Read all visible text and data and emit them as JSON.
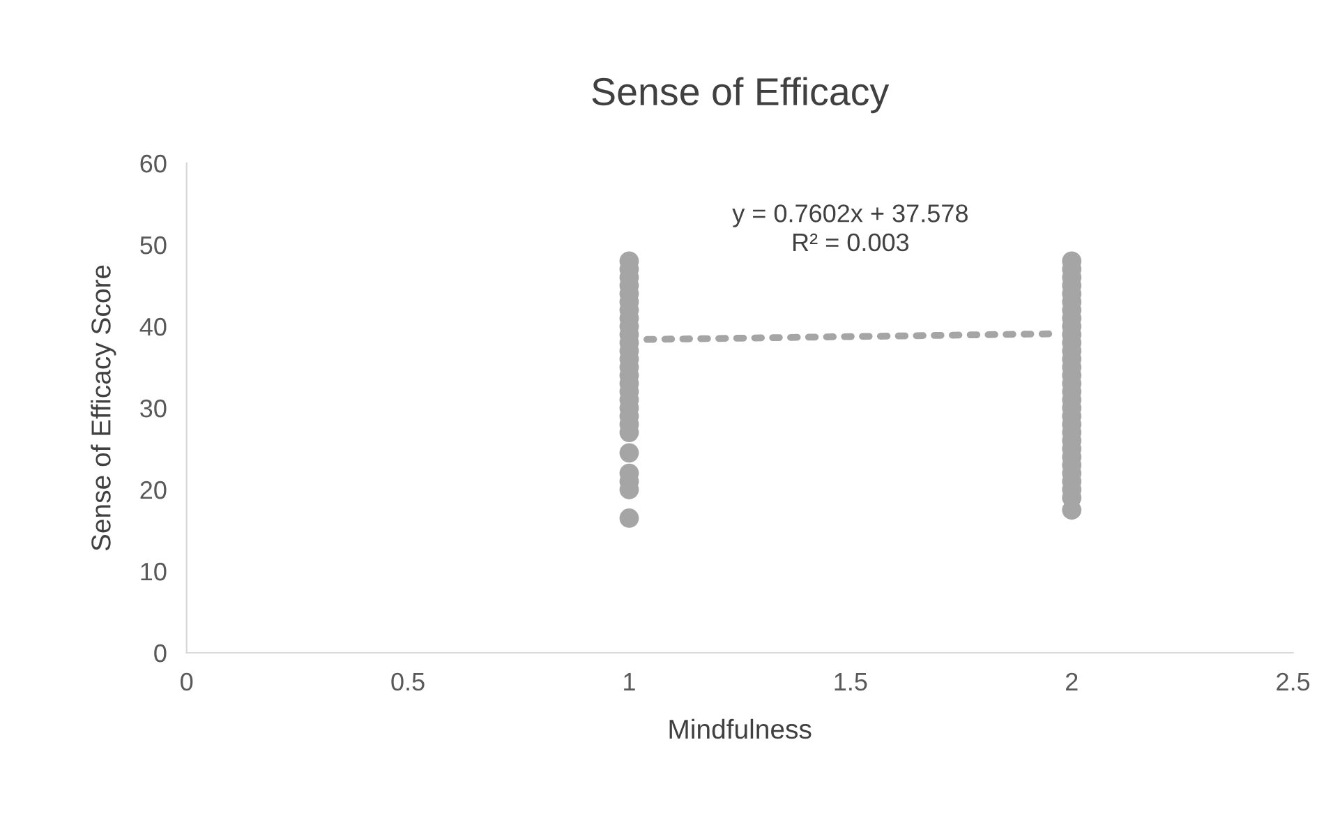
{
  "chart_data": {
    "type": "scatter",
    "title": "Sense of Efficacy",
    "xlabel": "Mindfulness",
    "ylabel": "Sense of Efficacy Score",
    "xlim": [
      0,
      2.5
    ],
    "xticks": [
      0,
      0.5,
      1,
      1.5,
      2,
      2.5
    ],
    "ylim": [
      0,
      60
    ],
    "yticks": [
      0,
      10,
      20,
      30,
      40,
      50,
      60
    ],
    "grid": false,
    "legend": false,
    "series": [
      {
        "marker": "circle",
        "color": "#a5a5a5",
        "x": [
          1,
          1,
          1,
          1,
          1,
          1,
          1,
          1,
          1,
          1,
          1,
          1,
          1,
          1,
          1,
          1,
          1,
          1,
          1,
          1,
          1,
          1,
          1,
          1,
          1,
          1,
          1,
          2,
          2,
          2,
          2,
          2,
          2,
          2,
          2,
          2,
          2,
          2,
          2,
          2,
          2,
          2,
          2,
          2,
          2,
          2,
          2,
          2,
          2,
          2,
          2,
          2,
          2,
          2,
          2,
          2,
          2,
          2
        ],
        "values": [
          48,
          47,
          46,
          45,
          44,
          43,
          42,
          41,
          40,
          39,
          38,
          37,
          36,
          35,
          34,
          33,
          32,
          31,
          30,
          29,
          28,
          27,
          24.5,
          22,
          21,
          20,
          16.5,
          48,
          47,
          46,
          45,
          44,
          43,
          42,
          41,
          40,
          39,
          38,
          37,
          36,
          35,
          34,
          33,
          32,
          31,
          30,
          29,
          28,
          27,
          26,
          25,
          24,
          23,
          22,
          21,
          20,
          19,
          17.5
        ]
      },
      {
        "type": "line",
        "marker": "none",
        "line_style": "dotted",
        "color": "#a5a5a5",
        "x": [
          1.04,
          1.96
        ],
        "values": [
          38.4,
          39.1
        ]
      }
    ],
    "annotations": [
      "y = 0.7602x + 37.578\nR² = 0.003"
    ]
  }
}
